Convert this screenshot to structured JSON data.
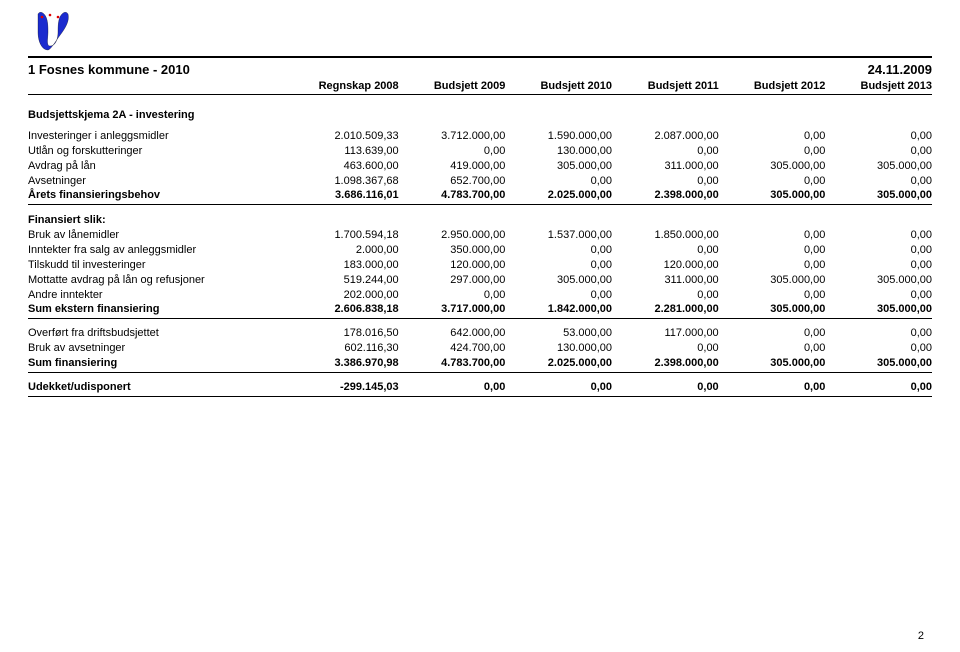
{
  "header": {
    "left": "1 Fosnes kommune - 2010",
    "right": "24.11.2009"
  },
  "columns": [
    "Regnskap 2008",
    "Budsjett 2009",
    "Budsjett 2010",
    "Budsjett 2011",
    "Budsjett 2012",
    "Budsjett 2013"
  ],
  "section_title": "Budsjettskjema 2A - investering",
  "groups": [
    {
      "heading": null,
      "rows": [
        {
          "label": "Investeringer i anleggsmidler",
          "vals": [
            "2.010.509,33",
            "3.712.000,00",
            "1.590.000,00",
            "2.087.000,00",
            "0,00",
            "0,00"
          ],
          "bold": false
        },
        {
          "label": "Utlån og forskutteringer",
          "vals": [
            "113.639,00",
            "0,00",
            "130.000,00",
            "0,00",
            "0,00",
            "0,00"
          ],
          "bold": false
        },
        {
          "label": "Avdrag på lån",
          "vals": [
            "463.600,00",
            "419.000,00",
            "305.000,00",
            "311.000,00",
            "305.000,00",
            "305.000,00"
          ],
          "bold": false
        },
        {
          "label": "Avsetninger",
          "vals": [
            "1.098.367,68",
            "652.700,00",
            "0,00",
            "0,00",
            "0,00",
            "0,00"
          ],
          "bold": false
        },
        {
          "label": "Årets finansieringsbehov",
          "vals": [
            "3.686.116,01",
            "4.783.700,00",
            "2.025.000,00",
            "2.398.000,00",
            "305.000,00",
            "305.000,00"
          ],
          "bold": true
        }
      ]
    },
    {
      "heading": "Finansiert slik:",
      "rows": [
        {
          "label": "Bruk av lånemidler",
          "vals": [
            "1.700.594,18",
            "2.950.000,00",
            "1.537.000,00",
            "1.850.000,00",
            "0,00",
            "0,00"
          ],
          "bold": false
        },
        {
          "label": "Inntekter fra salg av anleggsmidler",
          "vals": [
            "2.000,00",
            "350.000,00",
            "0,00",
            "0,00",
            "0,00",
            "0,00"
          ],
          "bold": false
        },
        {
          "label": "Tilskudd til investeringer",
          "vals": [
            "183.000,00",
            "120.000,00",
            "0,00",
            "120.000,00",
            "0,00",
            "0,00"
          ],
          "bold": false
        },
        {
          "label": "Mottatte avdrag på lån og refusjoner",
          "vals": [
            "519.244,00",
            "297.000,00",
            "305.000,00",
            "311.000,00",
            "305.000,00",
            "305.000,00"
          ],
          "bold": false
        },
        {
          "label": "Andre inntekter",
          "vals": [
            "202.000,00",
            "0,00",
            "0,00",
            "0,00",
            "0,00",
            "0,00"
          ],
          "bold": false
        },
        {
          "label": "Sum ekstern finansiering",
          "vals": [
            "2.606.838,18",
            "3.717.000,00",
            "1.842.000,00",
            "2.281.000,00",
            "305.000,00",
            "305.000,00"
          ],
          "bold": true
        }
      ]
    },
    {
      "heading": null,
      "rows": [
        {
          "label": "Overført fra driftsbudsjettet",
          "vals": [
            "178.016,50",
            "642.000,00",
            "53.000,00",
            "117.000,00",
            "0,00",
            "0,00"
          ],
          "bold": false
        },
        {
          "label": "Bruk av avsetninger",
          "vals": [
            "602.116,30",
            "424.700,00",
            "130.000,00",
            "0,00",
            "0,00",
            "0,00"
          ],
          "bold": false
        },
        {
          "label": "Sum finansiering",
          "vals": [
            "3.386.970,98",
            "4.783.700,00",
            "2.025.000,00",
            "2.398.000,00",
            "305.000,00",
            "305.000,00"
          ],
          "bold": true
        }
      ]
    },
    {
      "heading": null,
      "rows": [
        {
          "label": "Udekket/udisponert",
          "vals": [
            "-299.145,03",
            "0,00",
            "0,00",
            "0,00",
            "0,00",
            "0,00"
          ],
          "bold": true
        }
      ]
    }
  ],
  "page_number": "2"
}
